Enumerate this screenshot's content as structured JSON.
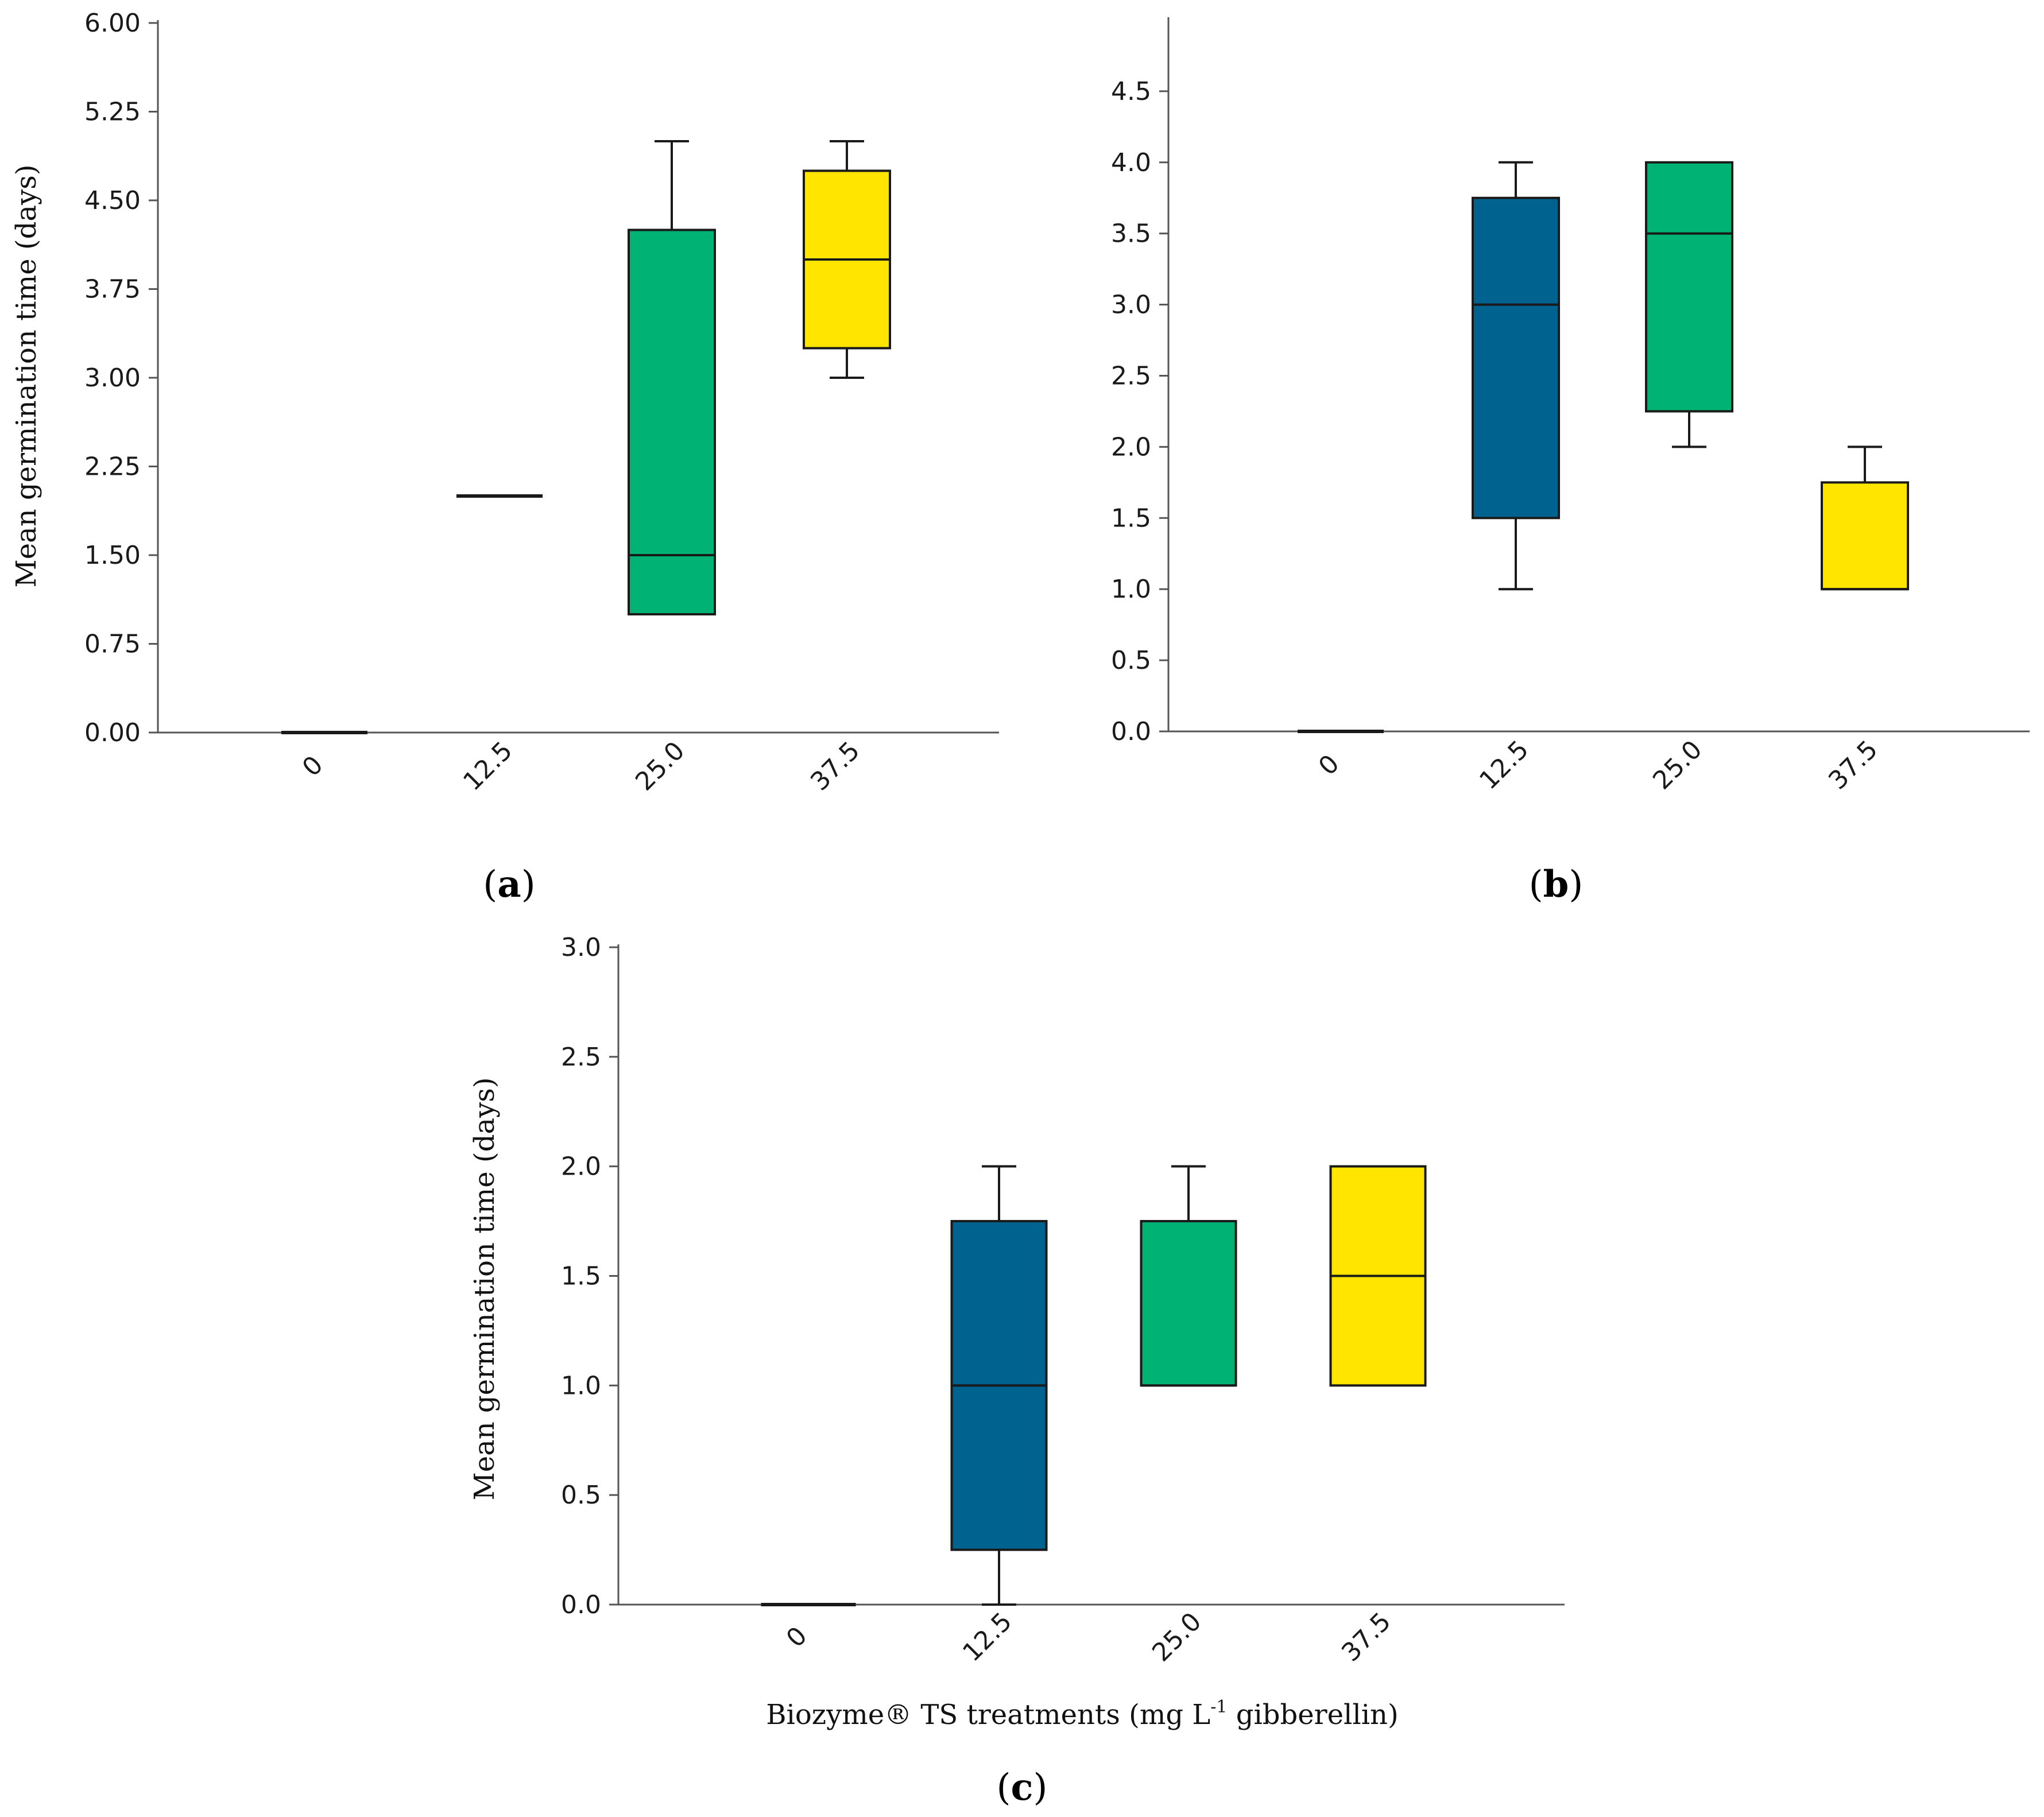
{
  "colors": {
    "box_12_5": "#00628e",
    "box_25_0": "#00b374",
    "box_37_5": "#ffe500",
    "line": "#1a1a1a"
  },
  "chart_data": [
    {
      "id": "a",
      "type": "boxplot",
      "label": "a",
      "ylabel": "Mean germination time (days)",
      "xlabel": "",
      "ylim": [
        0,
        6.0
      ],
      "yticks": [
        "0.00",
        "0.75",
        "1.50",
        "2.25",
        "3.00",
        "3.75",
        "4.50",
        "5.25",
        "6.00"
      ],
      "categories": [
        "0",
        "12.5",
        "25.0",
        "37.5"
      ],
      "boxes": [
        {
          "category": "0",
          "min": 0,
          "q1": 0,
          "median": 0,
          "q3": 0,
          "max": 0,
          "color": "#000000"
        },
        {
          "category": "12.5",
          "min": 2.0,
          "q1": 2.0,
          "median": 2.0,
          "q3": 2.0,
          "max": 2.0,
          "color": "#000000"
        },
        {
          "category": "25.0",
          "min": 1.0,
          "q1": 1.0,
          "median": 1.5,
          "q3": 4.25,
          "max": 5.0,
          "color": "#00b374"
        },
        {
          "category": "37.5",
          "min": 3.0,
          "q1": 3.25,
          "median": 4.0,
          "q3": 4.75,
          "max": 5.0,
          "color": "#ffe500"
        }
      ]
    },
    {
      "id": "b",
      "type": "boxplot",
      "label": "b",
      "ylabel": "",
      "xlabel": "",
      "ylim": [
        0,
        5.0
      ],
      "yticks": [
        "0.0",
        "0.5",
        "1.0",
        "1.5",
        "2.0",
        "2.5",
        "3.0",
        "3.5",
        "4.0",
        "4.5"
      ],
      "categories": [
        "0",
        "12.5",
        "25.0",
        "37.5"
      ],
      "boxes": [
        {
          "category": "0",
          "min": 0,
          "q1": 0,
          "median": 0,
          "q3": 0,
          "max": 0,
          "color": "#000000"
        },
        {
          "category": "12.5",
          "min": 1.0,
          "q1": 1.5,
          "median": 3.0,
          "q3": 3.75,
          "max": 4.0,
          "color": "#00628e"
        },
        {
          "category": "25.0",
          "min": 2.0,
          "q1": 2.25,
          "median": 3.5,
          "q3": 4.0,
          "max": 4.0,
          "color": "#00b374"
        },
        {
          "category": "37.5",
          "min": 1.0,
          "q1": 1.0,
          "median": 1.0,
          "q3": 1.75,
          "max": 2.0,
          "color": "#ffe500"
        }
      ]
    },
    {
      "id": "c",
      "type": "boxplot",
      "label": "c",
      "ylabel": "Mean germination time (days)",
      "xlabel": "Biozyme® TS treatments (mg L-1 gibberellin)",
      "ylim": [
        0,
        3.0
      ],
      "yticks": [
        "0.0",
        "0.5",
        "1.0",
        "1.5",
        "2.0",
        "2.5",
        "3.0"
      ],
      "categories": [
        "0",
        "12.5",
        "25.0",
        "37.5"
      ],
      "boxes": [
        {
          "category": "0",
          "min": 0,
          "q1": 0,
          "median": 0,
          "q3": 0,
          "max": 0,
          "color": "#000000"
        },
        {
          "category": "12.5",
          "min": 0.0,
          "q1": 0.25,
          "median": 1.0,
          "q3": 1.75,
          "max": 2.0,
          "color": "#00628e"
        },
        {
          "category": "25.0",
          "min": 1.0,
          "q1": 1.0,
          "median": 1.0,
          "q3": 1.75,
          "max": 2.0,
          "color": "#00b374"
        },
        {
          "category": "37.5",
          "min": 1.0,
          "q1": 1.0,
          "median": 1.5,
          "q3": 2.0,
          "max": 2.0,
          "color": "#ffe500"
        }
      ]
    }
  ],
  "xlabel_parts": {
    "before": "Biozyme® TS treatments (mg L",
    "superscript": "-1",
    "after": " gibberellin)"
  }
}
